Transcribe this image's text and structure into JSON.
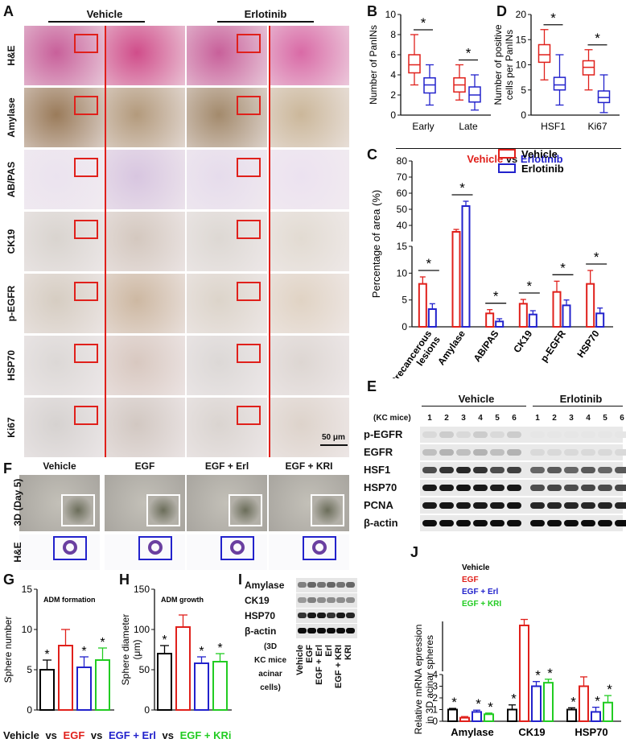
{
  "panels": {
    "A": "A",
    "B": "B",
    "C": "C",
    "D": "D",
    "E": "E",
    "F": "F",
    "G": "G",
    "H": "H",
    "I": "I",
    "J": "J"
  },
  "panelA": {
    "col_headers": [
      "Vehicle",
      "Erlotinib"
    ],
    "rows": [
      "H&E",
      "Amylase",
      "AB/PAS",
      "CK19",
      "p-EGFR",
      "HSP70",
      "Ki67"
    ],
    "scalebar": "50 μm"
  },
  "legendBD": {
    "vehicle": "Vehicle",
    "vs": "vs",
    "erlotinib": "Erlotinib",
    "vehicle_color": "#e0201b",
    "erlotinib_color": "#2222cc"
  },
  "panelE": {
    "group_headers": [
      "Vehicle",
      "Erlotinib"
    ],
    "lanes_label": "(KC mice)",
    "lanes": [
      "1",
      "2",
      "3",
      "4",
      "5",
      "6",
      "1",
      "2",
      "3",
      "4",
      "5",
      "6"
    ],
    "rows": [
      "p-EGFR",
      "EGFR",
      "HSF1",
      "HSP70",
      "PCNA",
      "β-actin"
    ]
  },
  "panelF": {
    "col_headers": [
      "Vehicle",
      "EGF",
      "EGF + Erl",
      "EGF + KRI"
    ],
    "rows": [
      "3D (Day 5)",
      "H&E"
    ]
  },
  "panelI": {
    "rows": [
      "Amylase",
      "CK19",
      "HSP70",
      "β-actin"
    ],
    "sub": [
      "(3D",
      "KC mice",
      "acinar",
      "cells)"
    ],
    "lanes": [
      "Vehicle",
      "EGF",
      "EGF + Erl",
      "Erl",
      "EGF + KRI",
      "KRI"
    ]
  },
  "bottom_legend": {
    "a": "Vehicle",
    "b": "EGF",
    "c": "EGF + Erl",
    "d": "EGF + KRi",
    "vs": "vs"
  },
  "colors": {
    "vehicle": "#000000",
    "egf": "#e0201b",
    "erl": "#2222cc",
    "kri": "#22cc22"
  },
  "chart_data": [
    {
      "id": "B",
      "type": "box",
      "ylabel": "Number of PanINs",
      "ylim": [
        0,
        10
      ],
      "yticks": [
        0,
        2,
        4,
        6,
        8,
        10
      ],
      "categories": [
        "Early",
        "Late"
      ],
      "series": [
        {
          "name": "Vehicle",
          "boxes": [
            {
              "min": 3,
              "q1": 4.2,
              "median": 5,
              "q3": 6,
              "max": 8
            },
            {
              "min": 1.5,
              "q1": 2.3,
              "median": 3,
              "q3": 3.7,
              "max": 5
            }
          ]
        },
        {
          "name": "Erlotinib",
          "boxes": [
            {
              "min": 1,
              "q1": 2.2,
              "median": 3,
              "q3": 3.7,
              "max": 5
            },
            {
              "min": 0.5,
              "q1": 1.3,
              "median": 2,
              "q3": 2.8,
              "max": 4
            }
          ]
        }
      ],
      "sig": [
        "*",
        "*"
      ]
    },
    {
      "id": "D",
      "type": "box",
      "ylabel": "Number of positive cells per PanINs",
      "ylim": [
        0,
        20
      ],
      "yticks": [
        0,
        5,
        10,
        15,
        20
      ],
      "categories": [
        "HSF1",
        "Ki67"
      ],
      "series": [
        {
          "name": "Vehicle",
          "boxes": [
            {
              "min": 7,
              "q1": 10.5,
              "median": 12,
              "q3": 14,
              "max": 17
            },
            {
              "min": 5,
              "q1": 8,
              "median": 9.5,
              "q3": 10.8,
              "max": 13
            }
          ]
        },
        {
          "name": "Erlotinib",
          "boxes": [
            {
              "min": 2,
              "q1": 5,
              "median": 6,
              "q3": 7.5,
              "max": 12
            },
            {
              "min": 0.5,
              "q1": 2.5,
              "median": 3.5,
              "q3": 4.8,
              "max": 8
            }
          ]
        }
      ],
      "sig": [
        "*",
        "*"
      ]
    },
    {
      "id": "C",
      "type": "bar",
      "ylabel": "Percentage of area (%)",
      "upper_ylim": [
        30,
        80
      ],
      "upper_yticks": [
        40,
        50,
        60,
        70,
        80
      ],
      "lower_ylim": [
        0,
        15
      ],
      "lower_yticks": [
        0,
        5,
        10,
        15
      ],
      "categories": [
        "Precancerous lesions",
        "Amylase",
        "AB/PAS",
        "CK19",
        "p-EGFR",
        "HSP70"
      ],
      "series": [
        {
          "name": "Vehicle",
          "values": [
            8,
            36,
            2.5,
            4.3,
            6.5,
            8
          ],
          "err": [
            1.3,
            1.5,
            0.7,
            0.8,
            2,
            2.5
          ]
        },
        {
          "name": "Erlotinib",
          "values": [
            3.3,
            52,
            1,
            2.3,
            4,
            2.5
          ],
          "err": [
            1,
            3,
            0.5,
            0.7,
            1,
            1
          ]
        }
      ],
      "sig": [
        "*",
        "*",
        "*",
        "*",
        "*",
        "*"
      ]
    },
    {
      "id": "G",
      "type": "bar",
      "title": "ADM formation",
      "ylabel": "Sphere number",
      "ylim": [
        0,
        15
      ],
      "yticks": [
        0,
        5,
        10,
        15
      ],
      "categories": [
        "Vehicle",
        "EGF",
        "EGF + Erl",
        "EGF + KRi"
      ],
      "values": [
        5,
        8,
        5.3,
        6.2
      ],
      "err": [
        1.2,
        2,
        1.3,
        1.5
      ],
      "sig": [
        "*",
        "",
        "*",
        "*"
      ]
    },
    {
      "id": "H",
      "type": "bar",
      "title": "ADM growth",
      "ylabel": "Sphere diameter (μm)",
      "ylim": [
        0,
        150
      ],
      "yticks": [
        0,
        50,
        100,
        150
      ],
      "categories": [
        "Vehicle",
        "EGF",
        "EGF + Erl",
        "EGF + KRi"
      ],
      "values": [
        70,
        103,
        58,
        60
      ],
      "err": [
        10,
        15,
        8,
        10
      ],
      "sig": [
        "*",
        "",
        "*",
        "*"
      ]
    },
    {
      "id": "J",
      "type": "bar",
      "ylabel": "Relative mRNA epression in 3D acinar spheres",
      "categories": [
        "Amylase",
        "CK19",
        "HSP70"
      ],
      "legend": [
        "Vehicle",
        "EGF",
        "EGF + Erl",
        "EGF + KRI"
      ],
      "series": [
        {
          "name": "Vehicle",
          "values": [
            1,
            1,
            1
          ],
          "err": [
            0.1,
            0.4,
            0.15
          ]
        },
        {
          "name": "EGF",
          "values": [
            0.3,
            8.6,
            3
          ],
          "err": [
            0.1,
            0.6,
            0.8
          ]
        },
        {
          "name": "EGF + Erl",
          "values": [
            0.8,
            3,
            0.8
          ],
          "err": [
            0.15,
            0.4,
            0.4
          ]
        },
        {
          "name": "EGF + KRI",
          "values": [
            0.6,
            3.3,
            1.6
          ],
          "err": [
            0.1,
            0.3,
            0.6
          ]
        }
      ],
      "sig": [
        [
          "*",
          "",
          "*",
          "*"
        ],
        [
          "*",
          "",
          "*",
          "*"
        ],
        [
          "*",
          "",
          "*",
          "*"
        ]
      ]
    }
  ]
}
